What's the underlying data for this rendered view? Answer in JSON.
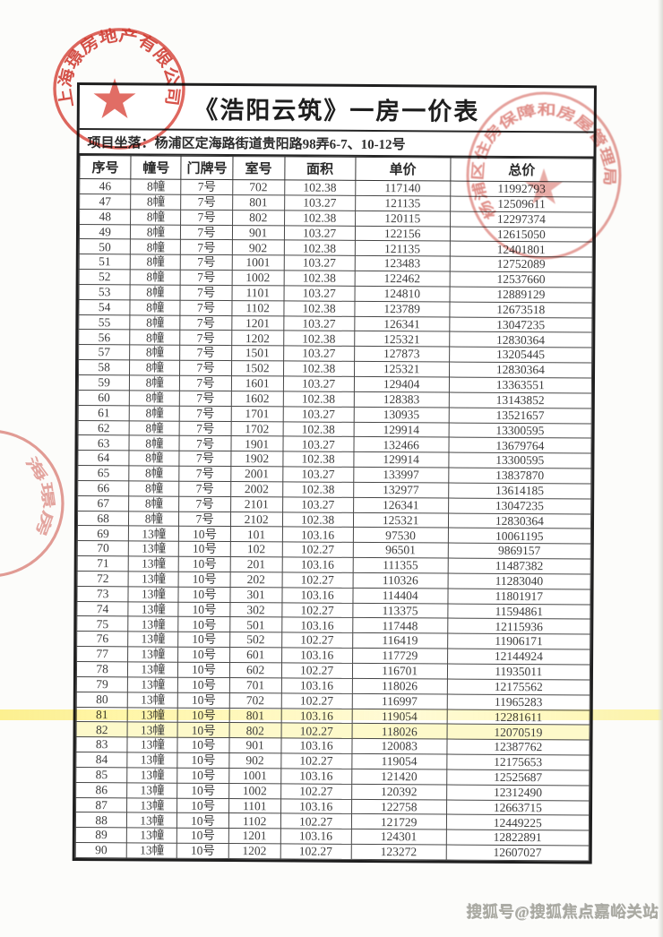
{
  "document": {
    "title": "《浩阳云筑》一房一价表",
    "location_label": "项目坐落：",
    "location_value": "杨浦区定海路街道贵阳路98弄6-7、10-12号"
  },
  "table": {
    "headers": [
      "序号",
      "幢号",
      "门牌号",
      "室号",
      "面积",
      "单价",
      "总价"
    ],
    "highlighted_serial": "82",
    "rows": [
      [
        "46",
        "8幢",
        "7号",
        "702",
        "102.38",
        "117140",
        "11992793"
      ],
      [
        "47",
        "8幢",
        "7号",
        "801",
        "103.27",
        "121135",
        "12509611"
      ],
      [
        "48",
        "8幢",
        "7号",
        "802",
        "102.38",
        "120115",
        "12297374"
      ],
      [
        "49",
        "8幢",
        "7号",
        "901",
        "103.27",
        "122156",
        "12615050"
      ],
      [
        "50",
        "8幢",
        "7号",
        "902",
        "102.38",
        "121135",
        "12401801"
      ],
      [
        "51",
        "8幢",
        "7号",
        "1001",
        "103.27",
        "123483",
        "12752089"
      ],
      [
        "52",
        "8幢",
        "7号",
        "1002",
        "102.38",
        "122462",
        "12537660"
      ],
      [
        "53",
        "8幢",
        "7号",
        "1101",
        "103.27",
        "124810",
        "12889129"
      ],
      [
        "54",
        "8幢",
        "7号",
        "1102",
        "102.38",
        "123789",
        "12673518"
      ],
      [
        "55",
        "8幢",
        "7号",
        "1201",
        "103.27",
        "126341",
        "13047235"
      ],
      [
        "56",
        "8幢",
        "7号",
        "1202",
        "102.38",
        "125321",
        "12830364"
      ],
      [
        "57",
        "8幢",
        "7号",
        "1501",
        "103.27",
        "127873",
        "13205445"
      ],
      [
        "58",
        "8幢",
        "7号",
        "1502",
        "102.38",
        "125321",
        "12830364"
      ],
      [
        "59",
        "8幢",
        "7号",
        "1601",
        "103.27",
        "129404",
        "13363551"
      ],
      [
        "60",
        "8幢",
        "7号",
        "1602",
        "102.38",
        "128383",
        "13143852"
      ],
      [
        "61",
        "8幢",
        "7号",
        "1701",
        "103.27",
        "130935",
        "13521657"
      ],
      [
        "62",
        "8幢",
        "7号",
        "1702",
        "102.38",
        "129914",
        "13300595"
      ],
      [
        "63",
        "8幢",
        "7号",
        "1901",
        "103.27",
        "132466",
        "13679764"
      ],
      [
        "64",
        "8幢",
        "7号",
        "1902",
        "102.38",
        "129914",
        "13300595"
      ],
      [
        "65",
        "8幢",
        "7号",
        "2001",
        "103.27",
        "133997",
        "13837870"
      ],
      [
        "66",
        "8幢",
        "7号",
        "2002",
        "102.38",
        "132977",
        "13614185"
      ],
      [
        "67",
        "8幢",
        "7号",
        "2101",
        "103.27",
        "126341",
        "13047235"
      ],
      [
        "68",
        "8幢",
        "7号",
        "2102",
        "102.38",
        "125321",
        "12830364"
      ],
      [
        "69",
        "13幢",
        "10号",
        "101",
        "103.16",
        "97530",
        "10061195"
      ],
      [
        "70",
        "13幢",
        "10号",
        "102",
        "102.27",
        "96501",
        "9869157"
      ],
      [
        "71",
        "13幢",
        "10号",
        "201",
        "103.16",
        "111355",
        "11487382"
      ],
      [
        "72",
        "13幢",
        "10号",
        "202",
        "102.27",
        "110326",
        "11283040"
      ],
      [
        "73",
        "13幢",
        "10号",
        "301",
        "103.16",
        "114404",
        "11801917"
      ],
      [
        "74",
        "13幢",
        "10号",
        "302",
        "102.27",
        "113375",
        "11594861"
      ],
      [
        "75",
        "13幢",
        "10号",
        "501",
        "103.16",
        "117448",
        "12115936"
      ],
      [
        "76",
        "13幢",
        "10号",
        "502",
        "102.27",
        "116419",
        "11906171"
      ],
      [
        "77",
        "13幢",
        "10号",
        "601",
        "103.16",
        "117729",
        "12144924"
      ],
      [
        "78",
        "13幢",
        "10号",
        "602",
        "102.27",
        "116701",
        "11935011"
      ],
      [
        "79",
        "13幢",
        "10号",
        "701",
        "103.16",
        "118026",
        "12175562"
      ],
      [
        "80",
        "13幢",
        "10号",
        "702",
        "102.27",
        "116997",
        "11965283"
      ],
      [
        "81",
        "13幢",
        "10号",
        "801",
        "103.16",
        "119054",
        "12281611"
      ],
      [
        "82",
        "13幢",
        "10号",
        "802",
        "102.27",
        "118026",
        "12070519"
      ],
      [
        "83",
        "13幢",
        "10号",
        "901",
        "103.16",
        "120083",
        "12387762"
      ],
      [
        "84",
        "13幢",
        "10号",
        "902",
        "102.27",
        "119054",
        "12175653"
      ],
      [
        "85",
        "13幢",
        "10号",
        "1001",
        "103.16",
        "121420",
        "12525687"
      ],
      [
        "86",
        "13幢",
        "10号",
        "1002",
        "102.27",
        "120392",
        "12312490"
      ],
      [
        "87",
        "13幢",
        "10号",
        "1101",
        "103.16",
        "122758",
        "12663715"
      ],
      [
        "88",
        "13幢",
        "10号",
        "1102",
        "102.27",
        "121729",
        "12449225"
      ],
      [
        "89",
        "13幢",
        "10号",
        "1201",
        "103.16",
        "124301",
        "12822891"
      ],
      [
        "90",
        "13幢",
        "10号",
        "1202",
        "102.27",
        "123272",
        "12607027"
      ]
    ]
  },
  "stamps": {
    "company_seal_text": "上海璟房地产有限公司",
    "authority_seal_text": "杨浦区住房保障和房屋管理局",
    "partial_seal_text": "海璟房",
    "stamp_red": "#d8463c"
  },
  "watermark": {
    "text": "搜狐号@搜狐焦点嘉峪关站"
  },
  "colors": {
    "highlight": "#fff394",
    "table_line": "#474747",
    "frame": "#1f1f1f"
  }
}
